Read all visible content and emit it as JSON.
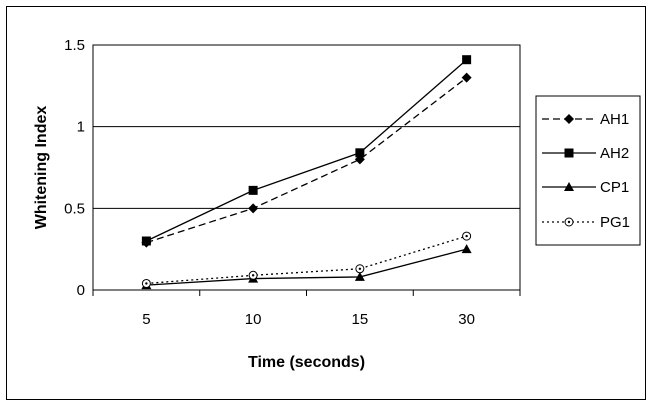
{
  "chart_data": {
    "type": "line",
    "title": "",
    "xlabel": "Time (seconds)",
    "ylabel": "Whitening Index",
    "categories": [
      "5",
      "10",
      "15",
      "30"
    ],
    "ylim": [
      0,
      1.5
    ],
    "yticks": [
      "0",
      "0.5",
      "1",
      "1.5"
    ],
    "grid": "horizontal",
    "legend_position": "right",
    "series": [
      {
        "name": "AH1",
        "values": [
          0.29,
          0.5,
          0.8,
          1.3
        ],
        "marker": "diamond",
        "line_style": "dashed",
        "color": "#000000"
      },
      {
        "name": "AH2",
        "values": [
          0.3,
          0.61,
          0.84,
          1.41
        ],
        "marker": "square",
        "line_style": "solid",
        "color": "#000000"
      },
      {
        "name": "CP1",
        "values": [
          0.03,
          0.07,
          0.08,
          0.25
        ],
        "marker": "triangle",
        "line_style": "solid",
        "color": "#000000"
      },
      {
        "name": "PG1",
        "values": [
          0.04,
          0.09,
          0.13,
          0.33
        ],
        "marker": "open-circle",
        "line_style": "dotted",
        "color": "#000000"
      }
    ]
  }
}
